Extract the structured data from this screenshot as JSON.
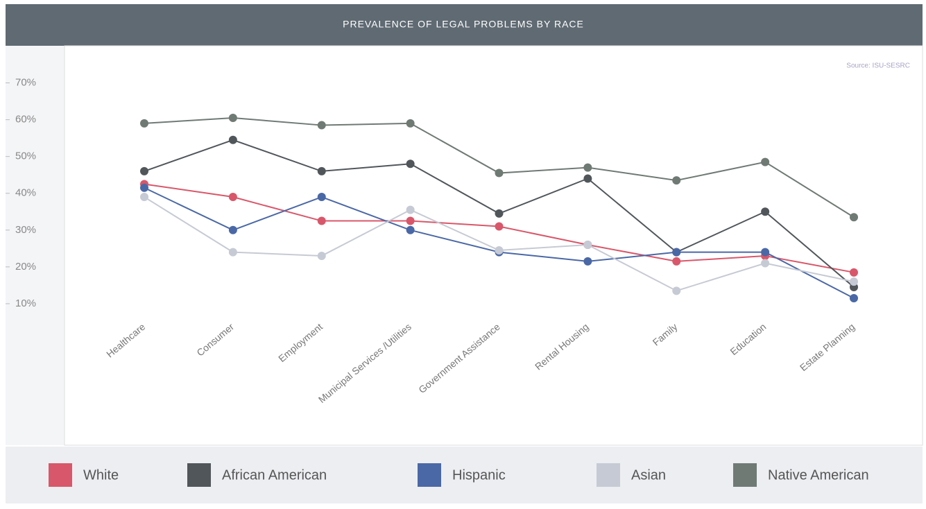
{
  "chart_data": {
    "type": "line",
    "title": "PREVALENCE OF LEGAL PROBLEMS BY RACE",
    "source": "Source: ISU-SESRC",
    "categories": [
      "Healthcare",
      "Consumer",
      "Employment",
      "Municipal Services /Utilities",
      "Government Assistance",
      "Rental Housing",
      "Family",
      "Education",
      "Estate Planning"
    ],
    "series": [
      {
        "name": "White",
        "color": "#d9576a",
        "values": [
          42.5,
          39,
          32.5,
          32.5,
          31,
          26,
          21.5,
          23,
          18.5
        ]
      },
      {
        "name": "African American",
        "color": "#50565a",
        "values": [
          46,
          54.5,
          46,
          48,
          34.5,
          44,
          24,
          35,
          14.5
        ]
      },
      {
        "name": "Hispanic",
        "color": "#4a68a6",
        "values": [
          41.5,
          30,
          39,
          30,
          24,
          21.5,
          24,
          24,
          11.5
        ]
      },
      {
        "name": "Asian",
        "color": "#c6cad4",
        "values": [
          39,
          24,
          23,
          35.5,
          24.5,
          26,
          13.5,
          21,
          16
        ]
      },
      {
        "name": "Native American",
        "color": "#6f7a74",
        "values": [
          59,
          60.5,
          58.5,
          59,
          45.5,
          47,
          43.5,
          48.5,
          33.5
        ]
      }
    ],
    "ylim": [
      0,
      75
    ],
    "yticks": [
      {
        "value": 10,
        "label": "10%"
      },
      {
        "value": 20,
        "label": "20%"
      },
      {
        "value": 30,
        "label": "30%"
      },
      {
        "value": 40,
        "label": "40%"
      },
      {
        "value": 50,
        "label": "50%"
      },
      {
        "value": 60,
        "label": "60%"
      },
      {
        "value": 70,
        "label": "70%"
      }
    ]
  }
}
